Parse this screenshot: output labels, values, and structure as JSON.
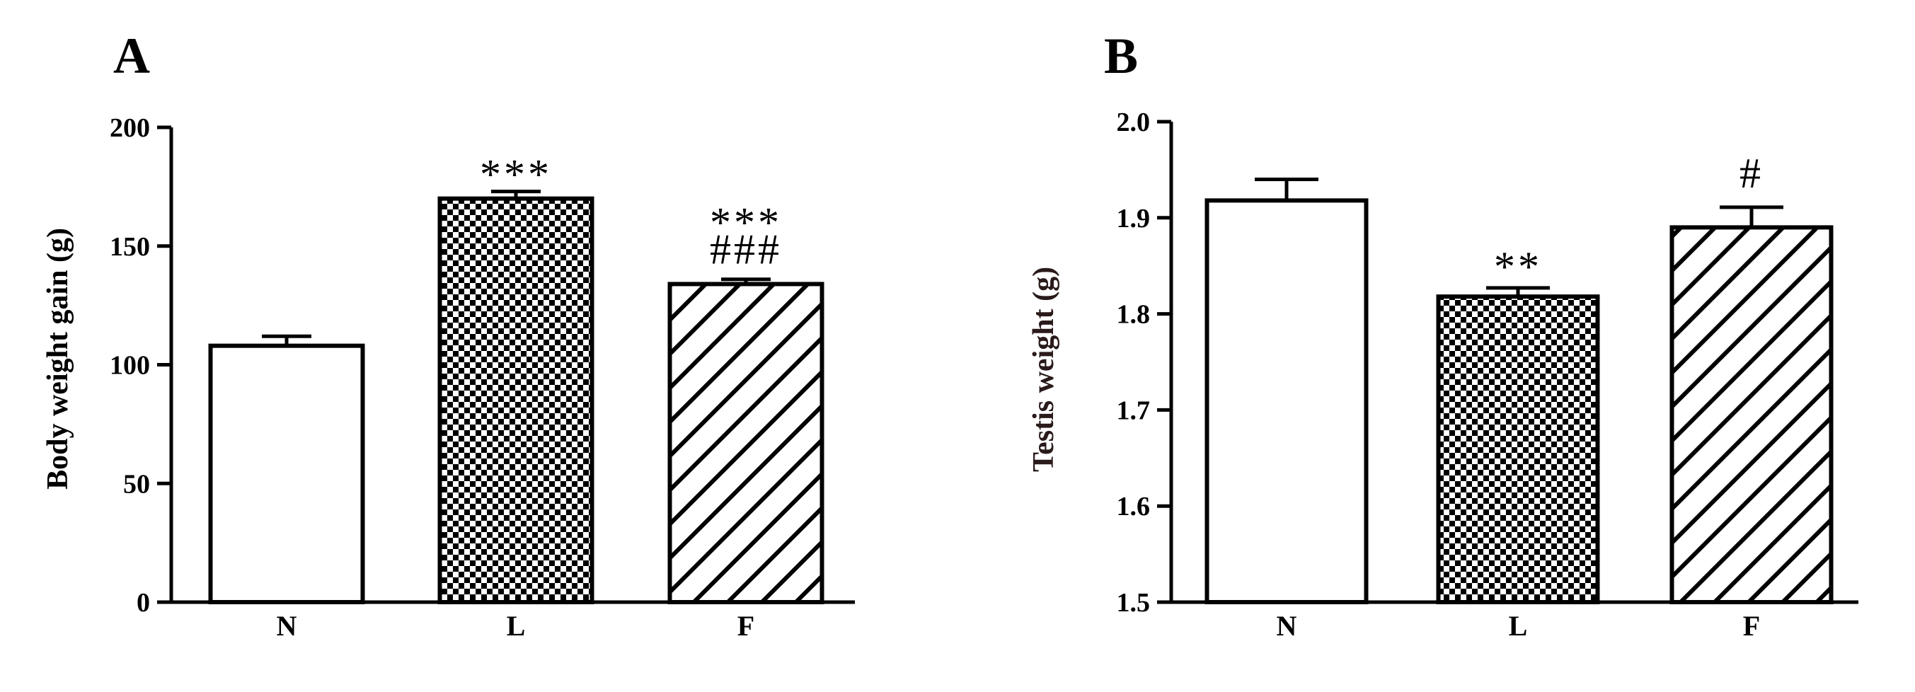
{
  "chart_data": [
    {
      "type": "bar",
      "panel": "A",
      "title": "",
      "xlabel": "",
      "ylabel": "Body weight gain (g)",
      "categories": [
        "N",
        "L",
        "F"
      ],
      "values": [
        108,
        170,
        134
      ],
      "errors": [
        4,
        3,
        2
      ],
      "ylim": [
        0,
        200
      ],
      "yticks": [
        "0",
        "50",
        "100",
        "150",
        "200"
      ],
      "yticks_values": [
        0,
        50,
        100,
        150,
        200
      ],
      "fill_patterns": [
        "none",
        "checker",
        "diagonal"
      ],
      "annotations": [
        {
          "category": "N",
          "lines": []
        },
        {
          "category": "L",
          "lines": [
            "***"
          ]
        },
        {
          "category": "F",
          "lines": [
            "***",
            "###"
          ]
        }
      ]
    },
    {
      "type": "bar",
      "panel": "B",
      "title": "",
      "xlabel": "",
      "ylabel": "Testis weight (g)",
      "categories": [
        "N",
        "L",
        "F"
      ],
      "values": [
        1.918,
        1.818,
        1.89
      ],
      "errors": [
        0.022,
        0.009,
        0.021
      ],
      "ylim": [
        1.5,
        2.0
      ],
      "yticks": [
        "1.5",
        "1.6",
        "1.7",
        "1.8",
        "1.9",
        "2.0"
      ],
      "yticks_values": [
        1.5,
        1.6,
        1.7,
        1.8,
        1.9,
        2.0
      ],
      "fill_patterns": [
        "none",
        "checker",
        "diagonal"
      ],
      "annotations": [
        {
          "category": "N",
          "lines": []
        },
        {
          "category": "L",
          "lines": [
            "**"
          ]
        },
        {
          "category": "F",
          "lines": [
            "#"
          ]
        }
      ]
    }
  ]
}
